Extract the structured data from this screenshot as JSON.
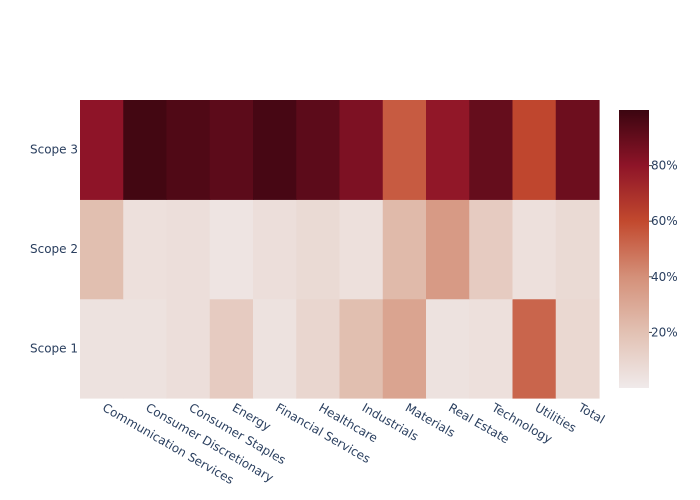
{
  "chart_data": {
    "type": "heatmap",
    "title": "",
    "xlabel": "",
    "ylabel": "",
    "x": [
      "Communication Services",
      "Consumer Discretionary",
      "Consumer Staples",
      "Energy",
      "Financial Services",
      "Healthcare",
      "Industrials",
      "Materials",
      "Real Estate",
      "Technology",
      "Utilities",
      "Total"
    ],
    "y": [
      "Scope 1",
      "Scope 2",
      "Scope 3"
    ],
    "z": [
      [
        4,
        4,
        6,
        15,
        4,
        10,
        21,
        32,
        4,
        5,
        52,
        9
      ],
      [
        21,
        5,
        6,
        3,
        6,
        8,
        5,
        23,
        36,
        15,
        5,
        8
      ],
      [
        80,
        98,
        95,
        92,
        97,
        92,
        84,
        55,
        79,
        90,
        61,
        88
      ]
    ],
    "zlim": [
      0,
      100
    ],
    "colorbar": {
      "ticks": [
        20,
        40,
        60,
        80
      ],
      "ticksuffix": "%"
    },
    "colorscale": [
      [
        0.0,
        "#f0eaea"
      ],
      [
        0.2,
        "#e2c1b3"
      ],
      [
        0.4,
        "#d49079"
      ],
      [
        0.6,
        "#c2492e"
      ],
      [
        0.8,
        "#8e1428"
      ],
      [
        1.0,
        "#3b0510"
      ]
    ]
  }
}
